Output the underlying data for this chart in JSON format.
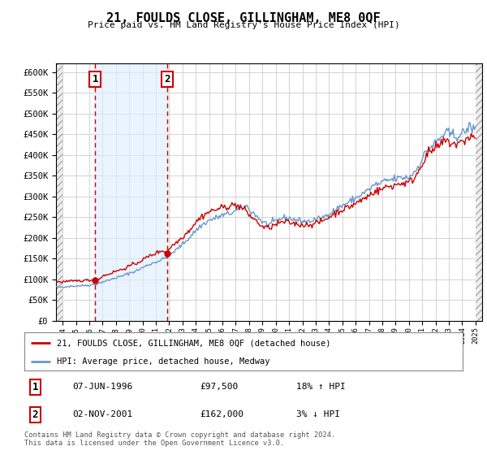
{
  "title": "21, FOULDS CLOSE, GILLINGHAM, ME8 0QF",
  "subtitle": "Price paid vs. HM Land Registry's House Price Index (HPI)",
  "legend_line1": "21, FOULDS CLOSE, GILLINGHAM, ME8 0QF (detached house)",
  "legend_line2": "HPI: Average price, detached house, Medway",
  "sale1_date": "07-JUN-1996",
  "sale1_price": "£97,500",
  "sale1_hpi": "18% ↑ HPI",
  "sale2_date": "02-NOV-2001",
  "sale2_price": "£162,000",
  "sale2_hpi": "3% ↓ HPI",
  "footer": "Contains HM Land Registry data © Crown copyright and database right 2024.\nThis data is licensed under the Open Government Licence v3.0.",
  "sale1_year": 1996.44,
  "sale2_year": 2001.84,
  "sale1_value": 97500,
  "sale2_value": 162000,
  "red_color": "#cc0000",
  "blue_color": "#6699cc",
  "shade_color": "#ddeeff",
  "ylim_min": 0,
  "ylim_max": 620000,
  "xlim_min": 1993.5,
  "xlim_max": 2025.5
}
